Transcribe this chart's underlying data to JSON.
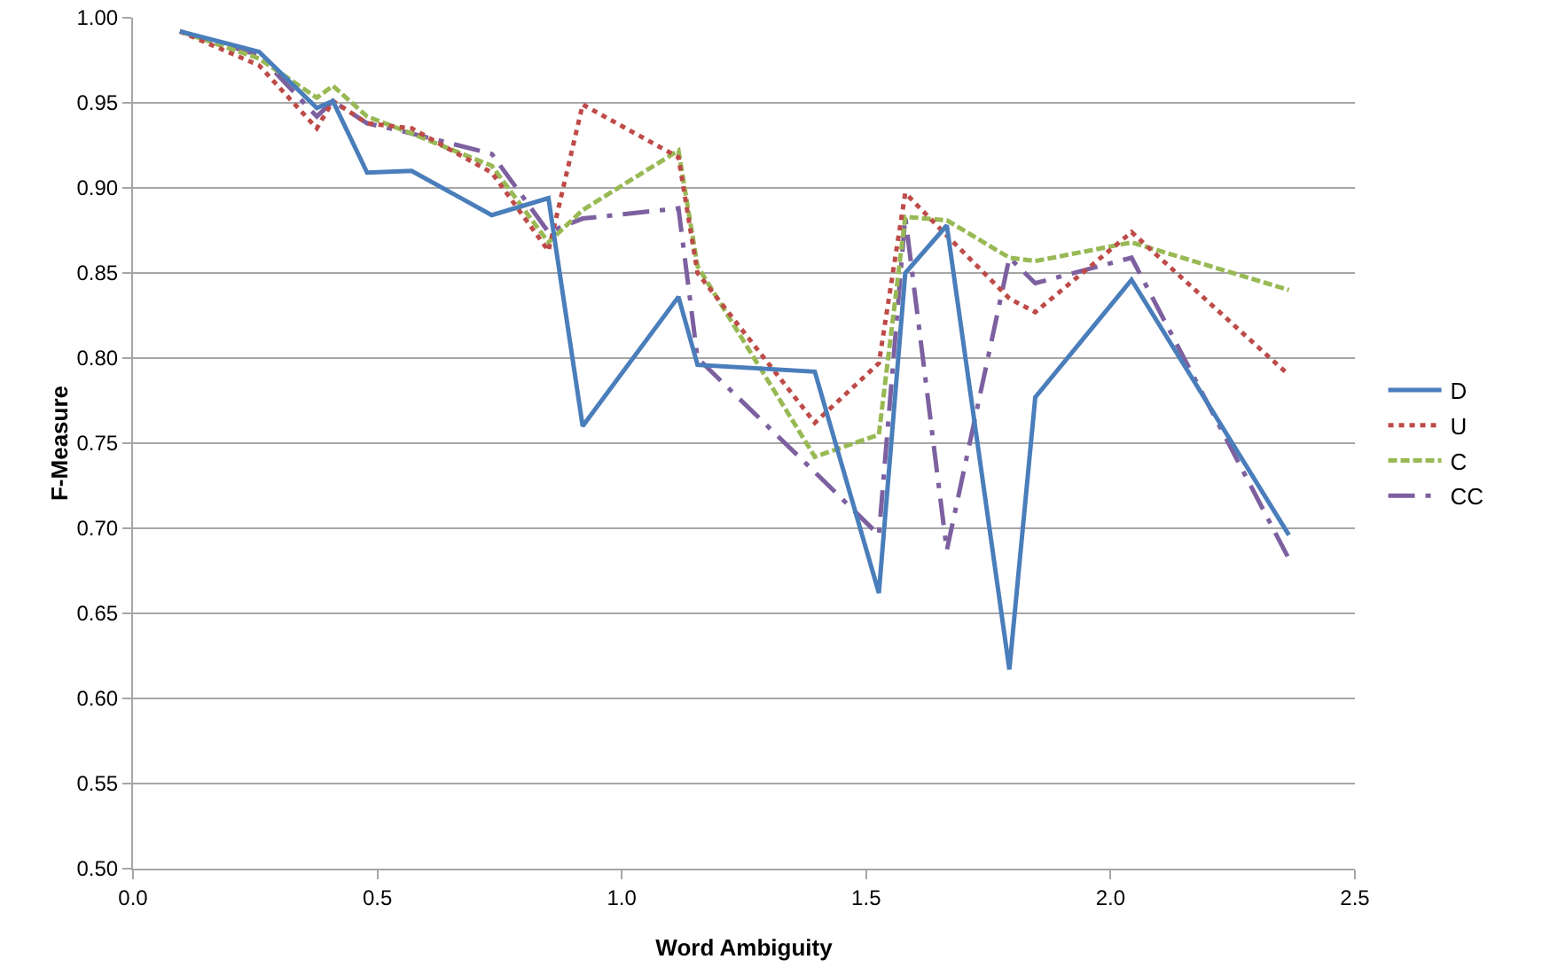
{
  "chart_data": {
    "type": "line",
    "xlabel": "Word Ambiguity",
    "ylabel": "F-Measure",
    "x": [
      0.096,
      0.258,
      0.376,
      0.409,
      0.479,
      0.57,
      0.734,
      0.85,
      0.92,
      1.116,
      1.155,
      1.395,
      1.526,
      1.58,
      1.665,
      1.793,
      1.846,
      2.043,
      2.365
    ],
    "series": [
      {
        "name": "D",
        "color": "#4a7ebb",
        "line_style": "solid",
        "values": [
          0.992,
          0.98,
          0.947,
          0.951,
          0.909,
          0.91,
          0.884,
          0.894,
          0.76,
          0.836,
          0.796,
          0.792,
          0.662,
          0.85,
          0.878,
          0.617,
          0.777,
          0.846,
          0.696
        ]
      },
      {
        "name": "U",
        "color": "#be4b48",
        "line_style": "dotted",
        "values": [
          0.992,
          0.972,
          0.935,
          0.951,
          0.938,
          0.935,
          0.909,
          0.863,
          0.949,
          0.918,
          0.85,
          0.762,
          0.797,
          0.897,
          0.872,
          0.835,
          0.827,
          0.874,
          0.79
        ]
      },
      {
        "name": "C",
        "color": "#98b954",
        "line_style": "dashed",
        "values": [
          0.992,
          0.976,
          0.953,
          0.96,
          0.942,
          0.932,
          0.913,
          0.868,
          0.887,
          0.922,
          0.854,
          0.742,
          0.755,
          0.883,
          0.881,
          0.859,
          0.857,
          0.868,
          0.84
        ]
      },
      {
        "name": "CC",
        "color": "#7d60a0",
        "line_style": "dashdot",
        "values": [
          0.992,
          0.978,
          0.942,
          0.951,
          0.938,
          0.932,
          0.92,
          0.874,
          0.882,
          0.888,
          0.8,
          0.733,
          0.696,
          0.883,
          0.687,
          0.859,
          0.844,
          0.859,
          0.682
        ]
      }
    ],
    "xlim": [
      0,
      2.5
    ],
    "xticks": [
      {
        "value": 0,
        "label": "0.0"
      },
      {
        "value": 0.5,
        "label": "0.5"
      },
      {
        "value": 1,
        "label": "1.0"
      },
      {
        "value": 1.5,
        "label": "1.5"
      },
      {
        "value": 2,
        "label": "2.0"
      },
      {
        "value": 2.5,
        "label": "2.5"
      }
    ],
    "ylim": [
      0.5,
      1
    ],
    "yticks": [
      {
        "value": 0.5,
        "label": "0.50"
      },
      {
        "value": 0.55,
        "label": "0.55"
      },
      {
        "value": 0.6,
        "label": "0.60"
      },
      {
        "value": 0.65,
        "label": "0.65"
      },
      {
        "value": 0.7,
        "label": "0.70"
      },
      {
        "value": 0.75,
        "label": "0.75"
      },
      {
        "value": 0.8,
        "label": "0.80"
      },
      {
        "value": 0.85,
        "label": "0.85"
      },
      {
        "value": 0.9,
        "label": "0.90"
      },
      {
        "value": 0.95,
        "label": "0.95"
      },
      {
        "value": 1,
        "label": "1.00"
      }
    ],
    "grid": "y",
    "legend": "right",
    "marker": "none"
  }
}
